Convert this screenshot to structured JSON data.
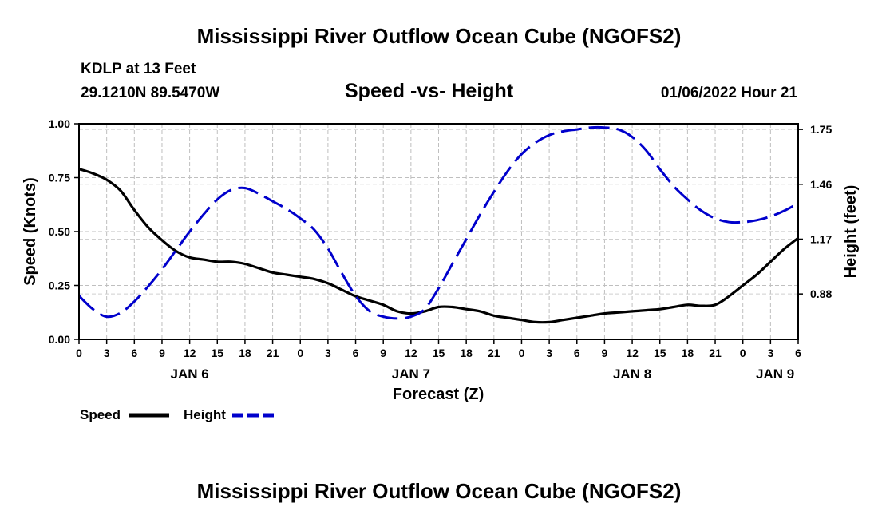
{
  "header": {
    "title": "Mississippi River Outflow Ocean Cube (NGOFS2)",
    "station": "KDLP at 13 Feet",
    "coordinates": "29.1210N  89.5470W",
    "subtitle": "Speed -vs- Height",
    "datetime": "01/06/2022 Hour 21"
  },
  "footer": {
    "title": "Mississippi River Outflow Ocean Cube (NGOFS2)"
  },
  "chart_data": {
    "type": "line",
    "title": "Speed -vs- Height",
    "xlabel": "Forecast (Z)",
    "ylabel": "Speed (Knots)",
    "y2label": "Height (feet)",
    "x_unit": "hours from 2022-01-06 00Z",
    "xlim": [
      0,
      78
    ],
    "ylim": [
      0,
      1.0
    ],
    "y2lim": [
      0.64,
      1.78
    ],
    "x_ticks": [
      0,
      3,
      6,
      9,
      12,
      15,
      18,
      21,
      24,
      27,
      30,
      33,
      36,
      39,
      42,
      45,
      48,
      51,
      54,
      57,
      60,
      63,
      66,
      69,
      72,
      75,
      78
    ],
    "x_tick_labels": [
      "0",
      "3",
      "6",
      "9",
      "12",
      "15",
      "18",
      "21",
      "0",
      "3",
      "6",
      "9",
      "12",
      "15",
      "18",
      "21",
      "0",
      "3",
      "6",
      "9",
      "12",
      "15",
      "18",
      "21",
      "0",
      "3",
      "6"
    ],
    "y_ticks": [
      0.0,
      0.25,
      0.5,
      0.75,
      1.0
    ],
    "y_tick_labels": [
      "0.00",
      "0.25",
      "0.50",
      "0.75",
      "1.00"
    ],
    "y2_ticks": [
      0.88,
      1.17,
      1.46,
      1.75
    ],
    "y2_tick_labels": [
      "0.88",
      "1.17",
      "1.46",
      "1.75"
    ],
    "day_labels": [
      {
        "x": 12,
        "label": "JAN 6"
      },
      {
        "x": 36,
        "label": "JAN 7"
      },
      {
        "x": 60,
        "label": "JAN 8"
      },
      {
        "x": 75.5,
        "label": "JAN 9"
      }
    ],
    "grid": true,
    "series": [
      {
        "name": "Speed",
        "axis": "left",
        "color": "#000000",
        "style": "solid",
        "x": [
          0,
          1.5,
          3,
          4.5,
          6,
          7.5,
          9,
          10.5,
          12,
          13.5,
          15,
          16.5,
          18,
          19.5,
          21,
          22.5,
          24,
          25.5,
          27,
          28.5,
          30,
          31.5,
          33,
          34.5,
          36,
          37.5,
          39,
          40.5,
          42,
          43.5,
          45,
          46.5,
          48,
          49.5,
          51,
          52.5,
          54,
          55.5,
          57,
          58.5,
          60,
          61.5,
          63,
          64.5,
          66,
          67.5,
          69,
          70.5,
          72,
          73.5,
          75,
          76.5,
          78
        ],
        "values": [
          0.79,
          0.77,
          0.74,
          0.69,
          0.6,
          0.52,
          0.46,
          0.41,
          0.38,
          0.37,
          0.36,
          0.36,
          0.35,
          0.33,
          0.31,
          0.3,
          0.29,
          0.28,
          0.26,
          0.23,
          0.2,
          0.18,
          0.16,
          0.13,
          0.12,
          0.13,
          0.15,
          0.15,
          0.14,
          0.13,
          0.11,
          0.1,
          0.09,
          0.08,
          0.08,
          0.09,
          0.1,
          0.11,
          0.12,
          0.125,
          0.13,
          0.135,
          0.14,
          0.15,
          0.16,
          0.155,
          0.16,
          0.2,
          0.25,
          0.3,
          0.36,
          0.42,
          0.47
        ]
      },
      {
        "name": "Height",
        "axis": "right",
        "color": "#0000cc",
        "style": "dashed",
        "x": [
          0,
          1.5,
          3,
          4.5,
          6,
          7.5,
          9,
          10.5,
          12,
          13.5,
          15,
          16.5,
          18,
          19.5,
          21,
          22.5,
          24,
          25.5,
          27,
          28.5,
          30,
          31.5,
          33,
          34.5,
          36,
          37.5,
          39,
          40.5,
          42,
          43.5,
          45,
          46.5,
          48,
          49.5,
          51,
          52.5,
          54,
          55.5,
          57,
          58.5,
          60,
          61.5,
          63,
          64.5,
          66,
          67.5,
          69,
          70.5,
          72,
          73.5,
          75,
          76.5,
          78
        ],
        "values": [
          0.87,
          0.8,
          0.76,
          0.78,
          0.84,
          0.92,
          1.01,
          1.11,
          1.21,
          1.3,
          1.38,
          1.43,
          1.44,
          1.41,
          1.37,
          1.33,
          1.28,
          1.22,
          1.12,
          0.99,
          0.87,
          0.79,
          0.76,
          0.75,
          0.76,
          0.8,
          0.91,
          1.04,
          1.17,
          1.3,
          1.42,
          1.53,
          1.62,
          1.68,
          1.72,
          1.74,
          1.75,
          1.76,
          1.76,
          1.75,
          1.71,
          1.64,
          1.54,
          1.45,
          1.38,
          1.32,
          1.28,
          1.26,
          1.26,
          1.27,
          1.29,
          1.32,
          1.36
        ]
      }
    ],
    "legend": {
      "position": "bottom-left",
      "entries": [
        {
          "label": "Speed",
          "color": "#000000",
          "style": "solid"
        },
        {
          "label": "Height",
          "color": "#0000cc",
          "style": "dashed"
        }
      ]
    }
  }
}
